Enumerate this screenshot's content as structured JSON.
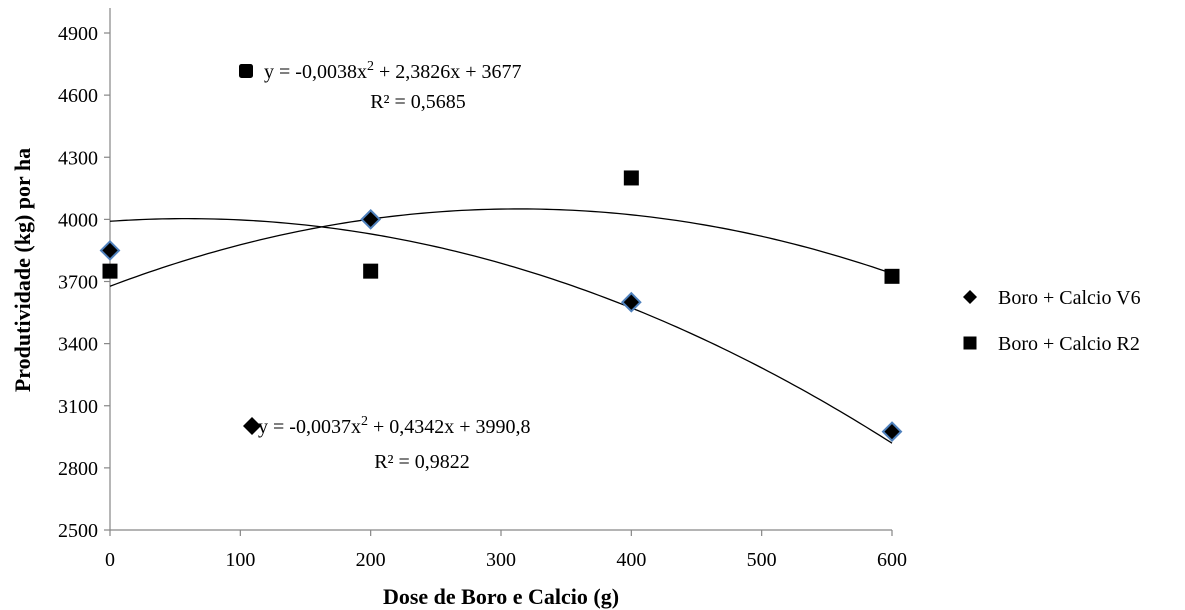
{
  "chart_data": {
    "type": "scatter",
    "xlabel": "Dose de Boro e Calcio (g)",
    "ylabel": "Produtividade (kg) por ha",
    "xlim": [
      0,
      600
    ],
    "ylim": [
      2500,
      4900
    ],
    "x_ticks": [
      "0",
      "100",
      "200",
      "300",
      "400",
      "500",
      "600"
    ],
    "y_ticks": [
      "2500",
      "2800",
      "3100",
      "3400",
      "3700",
      "4000",
      "4300",
      "4600",
      "4900"
    ],
    "grid": false,
    "legend_position": "right",
    "series": [
      {
        "name": "Boro + Calcio V6",
        "marker": "diamond",
        "color": "#000000",
        "marker_edge_color": "#4f81bd",
        "x": [
          0,
          200,
          400,
          600
        ],
        "y": [
          3850,
          4000,
          3600,
          2975
        ],
        "trendline": {
          "equation_main": "y = -0,0037x",
          "equation_rest": " + 0,4342x + 3990,8",
          "r2": "R² = 0,9822",
          "coefficients": [
            -0.0037,
            0.4342,
            3990.8
          ]
        }
      },
      {
        "name": "Boro + Calcio R2",
        "marker": "square",
        "color": "#000000",
        "x": [
          0,
          200,
          400,
          600
        ],
        "y": [
          3750,
          3750,
          4200,
          3725
        ],
        "trendline": {
          "equation_main": "y = -0,0038x",
          "equation_rest": " + 2,3826x + 3677",
          "r2": "R² = 0,5685",
          "coefficients": [
            -0.0038,
            2.3826,
            3677
          ]
        }
      }
    ],
    "equation_superscript": "2"
  }
}
